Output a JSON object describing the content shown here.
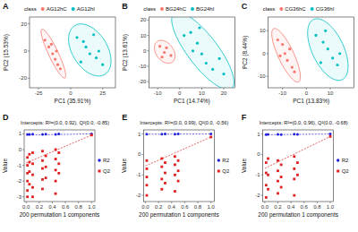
{
  "chart_data": [
    {
      "type": "scatter",
      "panel": "A",
      "legend_title": "class",
      "legend": "top",
      "grid": false,
      "x_label": "PC1 (35.91%)",
      "y_label": "PC2 (15.53%)",
      "xlim": [
        -32,
        35
      ],
      "ylim": [
        -27,
        25
      ],
      "xticks": [
        -25,
        0,
        25
      ],
      "yticks": [
        -20,
        0,
        20
      ],
      "series": [
        {
          "name": "AG12hC",
          "color": "#f8766d",
          "marker": "circle",
          "x": [
            -20,
            -17,
            -14,
            -12,
            -10,
            -8,
            -15,
            -11
          ],
          "values": [
            8,
            3,
            -2,
            -6,
            -10,
            -13,
            5,
            0
          ]
        },
        {
          "name": "AG12hI",
          "color": "#00bfc4",
          "marker": "circle",
          "x": [
            5,
            10,
            12,
            15,
            20,
            8,
            18,
            22,
            25
          ],
          "values": [
            10,
            7,
            3,
            -2,
            -5,
            -8,
            12,
            0,
            -10
          ]
        }
      ]
    },
    {
      "type": "scatter",
      "panel": "B",
      "legend_title": "class",
      "legend": "top",
      "grid": false,
      "x_label": "PC1 (14.74%)",
      "y_label": "PC2 (13.61%)",
      "xlim": [
        -14,
        25
      ],
      "ylim": [
        -24,
        22
      ],
      "xticks": [
        -10,
        0,
        10,
        20
      ],
      "yticks": [
        -20,
        -10,
        0,
        10,
        20
      ],
      "series": [
        {
          "name": "BG24hC",
          "color": "#f8766d",
          "marker": "circle",
          "x": [
            -9,
            -7,
            -6,
            -4,
            -8
          ],
          "values": [
            3,
            -1,
            2,
            -3,
            -4
          ]
        },
        {
          "name": "BG24hI",
          "color": "#00bfc4",
          "marker": "circle",
          "x": [
            2,
            5,
            8,
            10,
            12,
            15,
            18,
            6,
            20,
            9
          ],
          "values": [
            10,
            12,
            5,
            -2,
            -8,
            -12,
            -5,
            0,
            -15,
            15
          ]
        }
      ]
    },
    {
      "type": "scatter",
      "panel": "C",
      "legend_title": "class",
      "legend": "top",
      "grid": false,
      "x_label": "PC1 (13.83%)",
      "y_label": "PC2 (8.44%)",
      "xlim": [
        -16,
        20
      ],
      "ylim": [
        -15,
        16
      ],
      "xticks": [
        -10,
        0,
        10
      ],
      "yticks": [
        -10,
        0,
        10
      ],
      "series": [
        {
          "name": "CG36hC",
          "color": "#f8766d",
          "marker": "circle",
          "x": [
            -12,
            -10,
            -9,
            -8,
            -6,
            -11,
            -7,
            -5
          ],
          "values": [
            6,
            4,
            0,
            -3,
            -6,
            -1,
            2,
            -8
          ]
        },
        {
          "name": "CG36hI",
          "color": "#00bfc4",
          "marker": "circle",
          "x": [
            4,
            7,
            9,
            11,
            13,
            8,
            14,
            6
          ],
          "values": [
            8,
            5,
            2,
            -2,
            -5,
            10,
            0,
            -4
          ]
        }
      ]
    },
    {
      "type": "scatter",
      "panel": "D",
      "legend": "right",
      "grid": false,
      "title": "Intercepts: R²=(0.0, 0.92), Q²(0.0, -0.85)",
      "x_label": "200 permutation 1 components",
      "y_label": "Value",
      "xlim": [
        -0.03,
        1.05
      ],
      "ylim": [
        -3.3,
        1.25
      ],
      "xticks": [
        {
          "value": 0,
          "label": "0.0"
        },
        0.2,
        0.4,
        0.6,
        0.8,
        {
          "value": 1,
          "label": "1.0"
        }
      ],
      "yticks": [
        -3,
        -2,
        -1,
        0,
        1
      ],
      "series": [
        {
          "name": "R2",
          "color": "#2020e0",
          "marker": "circle",
          "line_style": "dashed",
          "x": [
            0.02,
            0.05,
            0.1,
            0.25,
            0.3,
            0.45,
            0.5,
            1.0
          ],
          "values": [
            0.96,
            0.97,
            0.98,
            0.97,
            0.98,
            0.96,
            0.99,
            1.0
          ],
          "fit_x": [
            0,
            1
          ],
          "fit_values": [
            0.92,
            1.0
          ]
        },
        {
          "name": "Q2",
          "color": "#e02020",
          "marker": "square",
          "line_style": "dashed",
          "x": [
            0.02,
            0.02,
            0.02,
            0.02,
            0.02,
            0.02,
            0.05,
            0.05,
            0.05,
            0.05,
            0.1,
            0.1,
            0.1,
            0.1,
            0.1,
            0.25,
            0.25,
            0.25,
            0.25,
            0.25,
            0.3,
            0.3,
            0.3,
            0.45,
            0.45,
            0.45,
            0.45,
            0.45,
            0.5,
            0.5,
            0.5,
            1.0
          ],
          "values": [
            -0.5,
            -1.0,
            -1.5,
            -2.0,
            -2.6,
            -3.0,
            -0.3,
            -0.8,
            -1.4,
            -2.2,
            -0.2,
            -0.9,
            -1.6,
            -2.4,
            -3.0,
            -0.1,
            -0.7,
            -1.2,
            -1.9,
            -2.5,
            -0.4,
            -1.1,
            -1.8,
            0.0,
            -0.6,
            -1.3,
            -2.0,
            -2.8,
            -0.2,
            -0.9,
            -1.5,
            0.92
          ],
          "fit_x": [
            0,
            1
          ],
          "fit_values": [
            -0.85,
            0.92
          ]
        }
      ]
    },
    {
      "type": "scatter",
      "panel": "E",
      "legend": "right",
      "grid": false,
      "title": "Intercepts: R²=(0.0, 0.99), Q²(0.0, -0.56)",
      "x_label": "200 permutation 1 components",
      "y_label": "Value",
      "xlim": [
        -0.03,
        1.05
      ],
      "ylim": [
        -2.3,
        1.2
      ],
      "xticks": [
        {
          "value": 0,
          "label": "0.0"
        },
        0.2,
        0.4,
        0.6,
        0.8,
        {
          "value": 1,
          "label": "1.0"
        }
      ],
      "yticks": [
        -2,
        -1,
        0,
        1
      ],
      "series": [
        {
          "name": "R2",
          "color": "#2020e0",
          "marker": "circle",
          "line_style": "dashed",
          "x": [
            0.02,
            0.25,
            0.3,
            0.45,
            0.5,
            1.0
          ],
          "values": [
            0.99,
            0.99,
            1.0,
            0.99,
            1.0,
            1.0
          ],
          "fit_x": [
            0,
            1
          ],
          "fit_values": [
            0.99,
            1.0
          ]
        },
        {
          "name": "Q2",
          "color": "#e02020",
          "marker": "square",
          "line_style": "dashed",
          "x": [
            0.02,
            0.02,
            0.02,
            0.02,
            0.02,
            0.25,
            0.25,
            0.25,
            0.25,
            0.3,
            0.3,
            0.3,
            0.45,
            0.45,
            0.45,
            0.45,
            0.5,
            0.5,
            0.5,
            1.0
          ],
          "values": [
            -0.3,
            -0.7,
            -1.1,
            -1.5,
            -2.0,
            -0.2,
            -0.6,
            -1.2,
            -1.7,
            -0.4,
            -0.9,
            -1.4,
            -0.1,
            -0.5,
            -1.0,
            -1.8,
            -0.3,
            -0.8,
            -1.3,
            0.85
          ],
          "fit_x": [
            0,
            1
          ],
          "fit_values": [
            -0.56,
            0.85
          ]
        }
      ]
    },
    {
      "type": "scatter",
      "panel": "F",
      "legend": "right",
      "grid": false,
      "title": "Intercepts: R²=(0.0, 0.96), Q²(0.0, -0.68)",
      "x_label": "200 permutation 1 components",
      "y_label": "Value",
      "xlim": [
        -0.03,
        1.05
      ],
      "ylim": [
        -2.3,
        1.2
      ],
      "xticks": [
        {
          "value": 0,
          "label": "0.0"
        },
        0.2,
        0.4,
        0.6,
        0.8,
        {
          "value": 1,
          "label": "1.0"
        }
      ],
      "yticks": [
        -2,
        -1,
        0,
        1
      ],
      "series": [
        {
          "name": "R2",
          "color": "#2020e0",
          "marker": "circle",
          "line_style": "dashed",
          "x": [
            0.02,
            0.05,
            0.2,
            0.25,
            0.45,
            0.5,
            1.0
          ],
          "values": [
            0.97,
            0.98,
            0.98,
            0.97,
            0.99,
            0.98,
            1.0
          ],
          "fit_x": [
            0,
            1
          ],
          "fit_values": [
            0.96,
            1.0
          ]
        },
        {
          "name": "Q2",
          "color": "#e02020",
          "marker": "square",
          "line_style": "dashed",
          "x": [
            0.02,
            0.02,
            0.02,
            0.02,
            0.05,
            0.05,
            0.05,
            0.2,
            0.2,
            0.2,
            0.2,
            0.25,
            0.25,
            0.25,
            0.45,
            0.45,
            0.45,
            0.45,
            0.5,
            0.5,
            1.0
          ],
          "values": [
            -0.4,
            -0.9,
            -1.5,
            -2.1,
            -0.2,
            -1.0,
            -1.7,
            -0.3,
            -0.8,
            -1.3,
            -1.9,
            -0.5,
            -1.1,
            -1.6,
            -0.1,
            -0.7,
            -1.2,
            -2.0,
            -0.4,
            -1.0,
            0.88
          ],
          "fit_x": [
            0,
            1
          ],
          "fit_values": [
            -0.68,
            0.88
          ]
        }
      ]
    }
  ]
}
